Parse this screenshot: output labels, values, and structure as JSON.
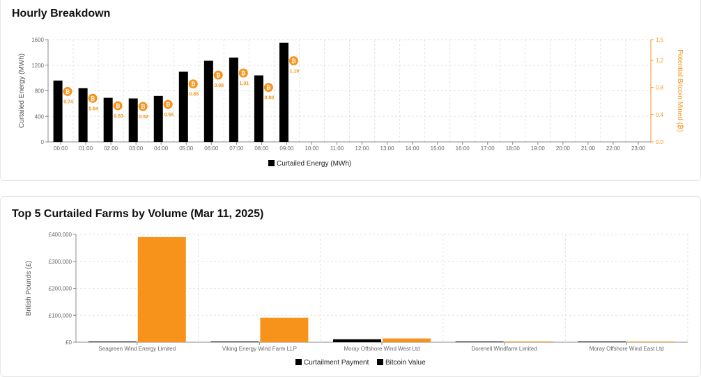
{
  "hourly": {
    "title": "Hourly Breakdown",
    "chart_data": {
      "type": "bar",
      "categories": [
        "00:00",
        "01:00",
        "02:00",
        "03:00",
        "04:00",
        "05:00",
        "06:00",
        "07:00",
        "08:00",
        "09:00",
        "10:00",
        "11:00",
        "12:00",
        "13:00",
        "14:00",
        "15:00",
        "16:00",
        "17:00",
        "18:00",
        "19:00",
        "20:00",
        "21:00",
        "22:00",
        "23:00"
      ],
      "series": [
        {
          "name": "Curtailed Energy (MWh)",
          "axis": "left",
          "values": [
            960,
            840,
            690,
            680,
            720,
            1100,
            1270,
            1320,
            1040,
            1550,
            null,
            null,
            null,
            null,
            null,
            null,
            null,
            null,
            null,
            null,
            null,
            null,
            null,
            null
          ]
        }
      ],
      "bitcoin_markers": {
        "icon": "bitcoin-icon",
        "values": [
          0.74,
          0.64,
          0.53,
          0.52,
          0.55,
          0.85,
          0.98,
          1.01,
          0.8,
          1.19
        ],
        "labels": [
          "0.74",
          "0.64",
          "0.53",
          "0.52",
          "0.55",
          "0.85",
          "0.98",
          "1.01",
          "0.80",
          "1.19"
        ]
      },
      "ylabel_left": "Curtailed Energy (MWh)",
      "ylabel_right": "Potential Bitcoin Mined (₿)",
      "ylim_left": [
        0,
        1600
      ],
      "ylim_right": [
        0,
        1.5
      ],
      "yticks_left": [
        "0",
        "400",
        "800",
        "1200",
        "1600"
      ],
      "yticks_right": [
        "0.0",
        "0.4",
        "0.8",
        "1.2",
        "1.5"
      ],
      "legend": [
        "Curtailed Energy (MWh)"
      ],
      "legend_position": "bottom",
      "grid": true,
      "colors": {
        "bar": "#000000",
        "accent": "#f7931a"
      }
    }
  },
  "farms": {
    "title": "Top 5 Curtailed Farms by Volume (Mar 11, 2025)",
    "chart_data": {
      "type": "bar",
      "categories": [
        "Seagreen Wind Energy Limited",
        "Viking Energy Wind Farm LLP",
        "Moray Offshore Wind West Ltd",
        "Dorenell Windfarm Limited",
        "Moray Offshore Wind East Ltd"
      ],
      "series": [
        {
          "name": "Curtailment Payment",
          "values": [
            1500,
            2500,
            11000,
            300,
            200
          ]
        },
        {
          "name": "Bitcoin Value",
          "values": [
            390000,
            91000,
            14000,
            3000,
            2000
          ]
        }
      ],
      "ylabel": "British Pounds (£)",
      "ylim": [
        0,
        400000
      ],
      "yticks": [
        "£0",
        "£100,000",
        "£200,000",
        "£300,000",
        "£400,000"
      ],
      "legend_position": "bottom",
      "grid": true,
      "colors": {
        "payment": "#000000",
        "bitcoin": "#f7931a"
      }
    }
  }
}
